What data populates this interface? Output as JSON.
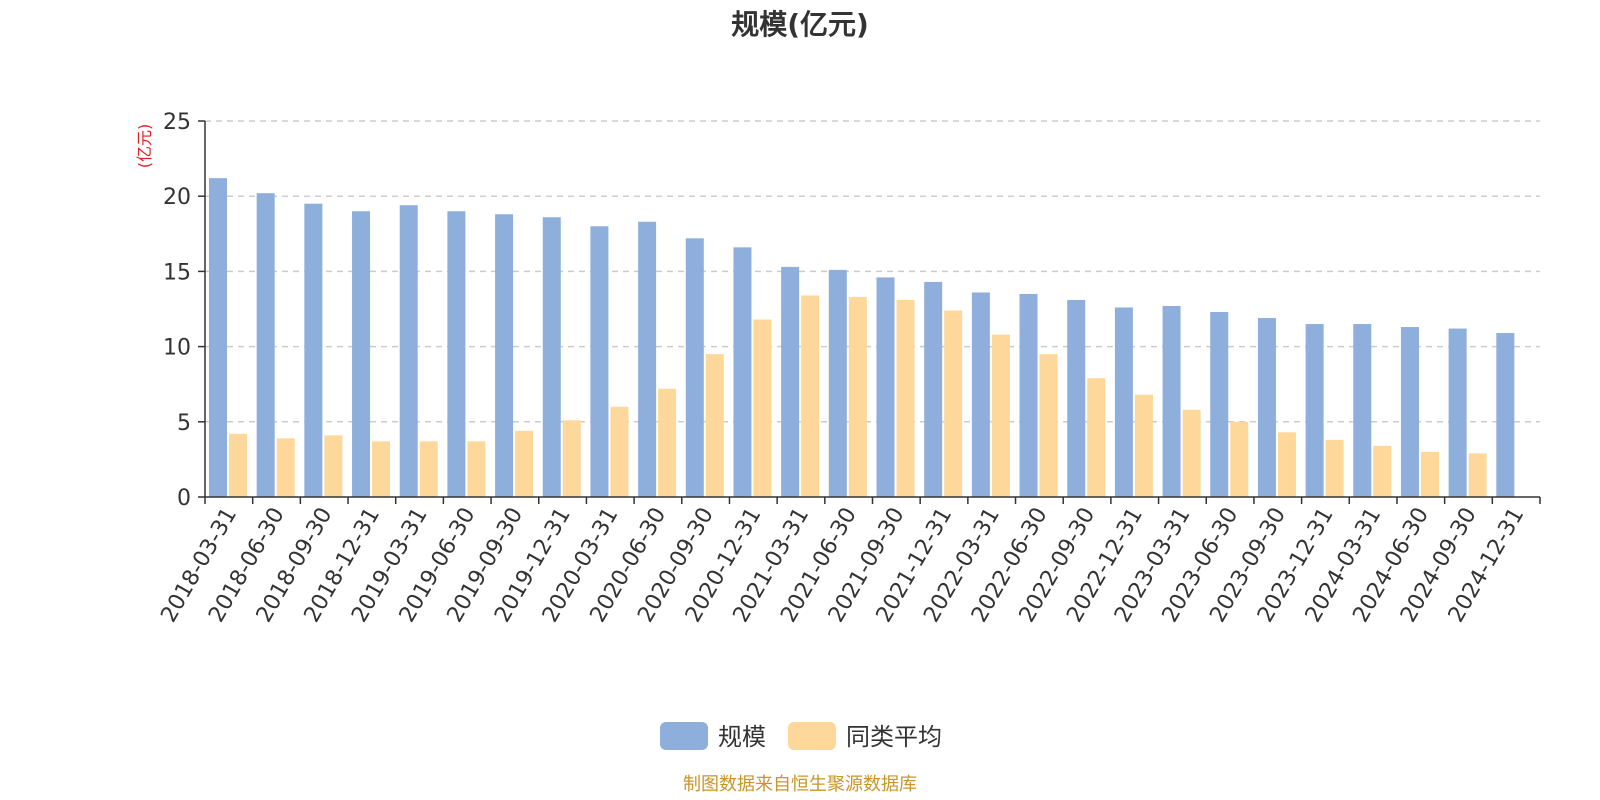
{
  "chart_data": {
    "type": "bar",
    "title": "规模(亿元)",
    "ylabel": "(亿元)",
    "ylim": [
      0,
      25
    ],
    "yticks": [
      0,
      5,
      10,
      15,
      20,
      25
    ],
    "grid": true,
    "legend_position": "bottom",
    "categories": [
      "2018-03-31",
      "2018-06-30",
      "2018-09-30",
      "2018-12-31",
      "2019-03-31",
      "2019-06-30",
      "2019-09-30",
      "2019-12-31",
      "2020-03-31",
      "2020-06-30",
      "2020-09-30",
      "2020-12-31",
      "2021-03-31",
      "2021-06-30",
      "2021-09-30",
      "2021-12-31",
      "2022-03-31",
      "2022-06-30",
      "2022-09-30",
      "2022-12-31",
      "2023-03-31",
      "2023-06-30",
      "2023-09-30",
      "2023-12-31",
      "2024-03-31",
      "2024-06-30",
      "2024-09-30",
      "2024-12-31"
    ],
    "series": [
      {
        "name": "规模",
        "color": "#8eaedb",
        "values": [
          21.2,
          20.2,
          19.5,
          19.0,
          19.4,
          19.0,
          18.8,
          18.6,
          18.0,
          18.3,
          17.2,
          16.6,
          15.3,
          15.1,
          14.6,
          14.3,
          13.6,
          13.5,
          13.1,
          12.6,
          12.7,
          12.3,
          11.9,
          11.5,
          11.5,
          11.3,
          11.2,
          10.9
        ]
      },
      {
        "name": "同类平均",
        "color": "#fdd89a",
        "values": [
          4.2,
          3.9,
          4.1,
          3.7,
          3.7,
          3.7,
          4.4,
          5.1,
          6.0,
          7.2,
          9.5,
          11.8,
          13.4,
          13.3,
          13.1,
          12.4,
          10.8,
          9.5,
          7.9,
          6.8,
          5.8,
          5.0,
          4.3,
          3.8,
          3.4,
          3.0,
          2.9,
          null
        ]
      }
    ]
  },
  "colors": {
    "unit_label": "#e02020",
    "source_text": "#c8952a",
    "axis": "#333333",
    "grid": "#cccccc"
  },
  "source_note": "制图数据来自恒生聚源数据库"
}
